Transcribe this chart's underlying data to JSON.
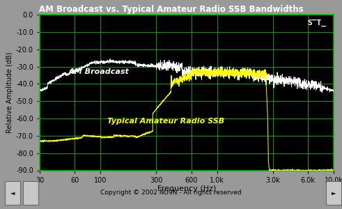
{
  "title": "AM Broadcast vs. Typical Amateur Radio SSB Bandwidths",
  "xlabel": "Frequency (Hz)",
  "ylabel": "Relative Amplitude (dB)",
  "copyright": "Copyright © 2002 NU9N - All rights reserved",
  "bg_color": "#000000",
  "outer_bg": "#999999",
  "grid_color": "#00bb00",
  "title_color": "#ffffff",
  "am_color": "#ffffff",
  "ssb_color": "#ffff00",
  "am_label": "AM Broadcast",
  "ssb_label": "Typical Amateur Radio SSB",
  "ylim": [
    -90,
    0
  ],
  "xlim_log": [
    30,
    10000
  ],
  "xticks": [
    30,
    60,
    100,
    300,
    600,
    1000,
    3000,
    6000,
    10000
  ],
  "xtick_labels": [
    "30",
    "60",
    "100",
    "300",
    "600",
    "1.0k",
    "3.0k",
    "6.0k",
    "10.0k"
  ],
  "yticks": [
    0,
    -10,
    -20,
    -30,
    -40,
    -50,
    -60,
    -70,
    -80,
    -90
  ],
  "ytick_labels": [
    "0.0",
    "-10.0",
    "-20.0",
    "-30.0",
    "-40.0",
    "-50.0",
    "-60.0",
    "-70.0",
    "-80.0",
    "-90.0"
  ],
  "tick_color": "#000000",
  "axis_label_color": "#000000"
}
